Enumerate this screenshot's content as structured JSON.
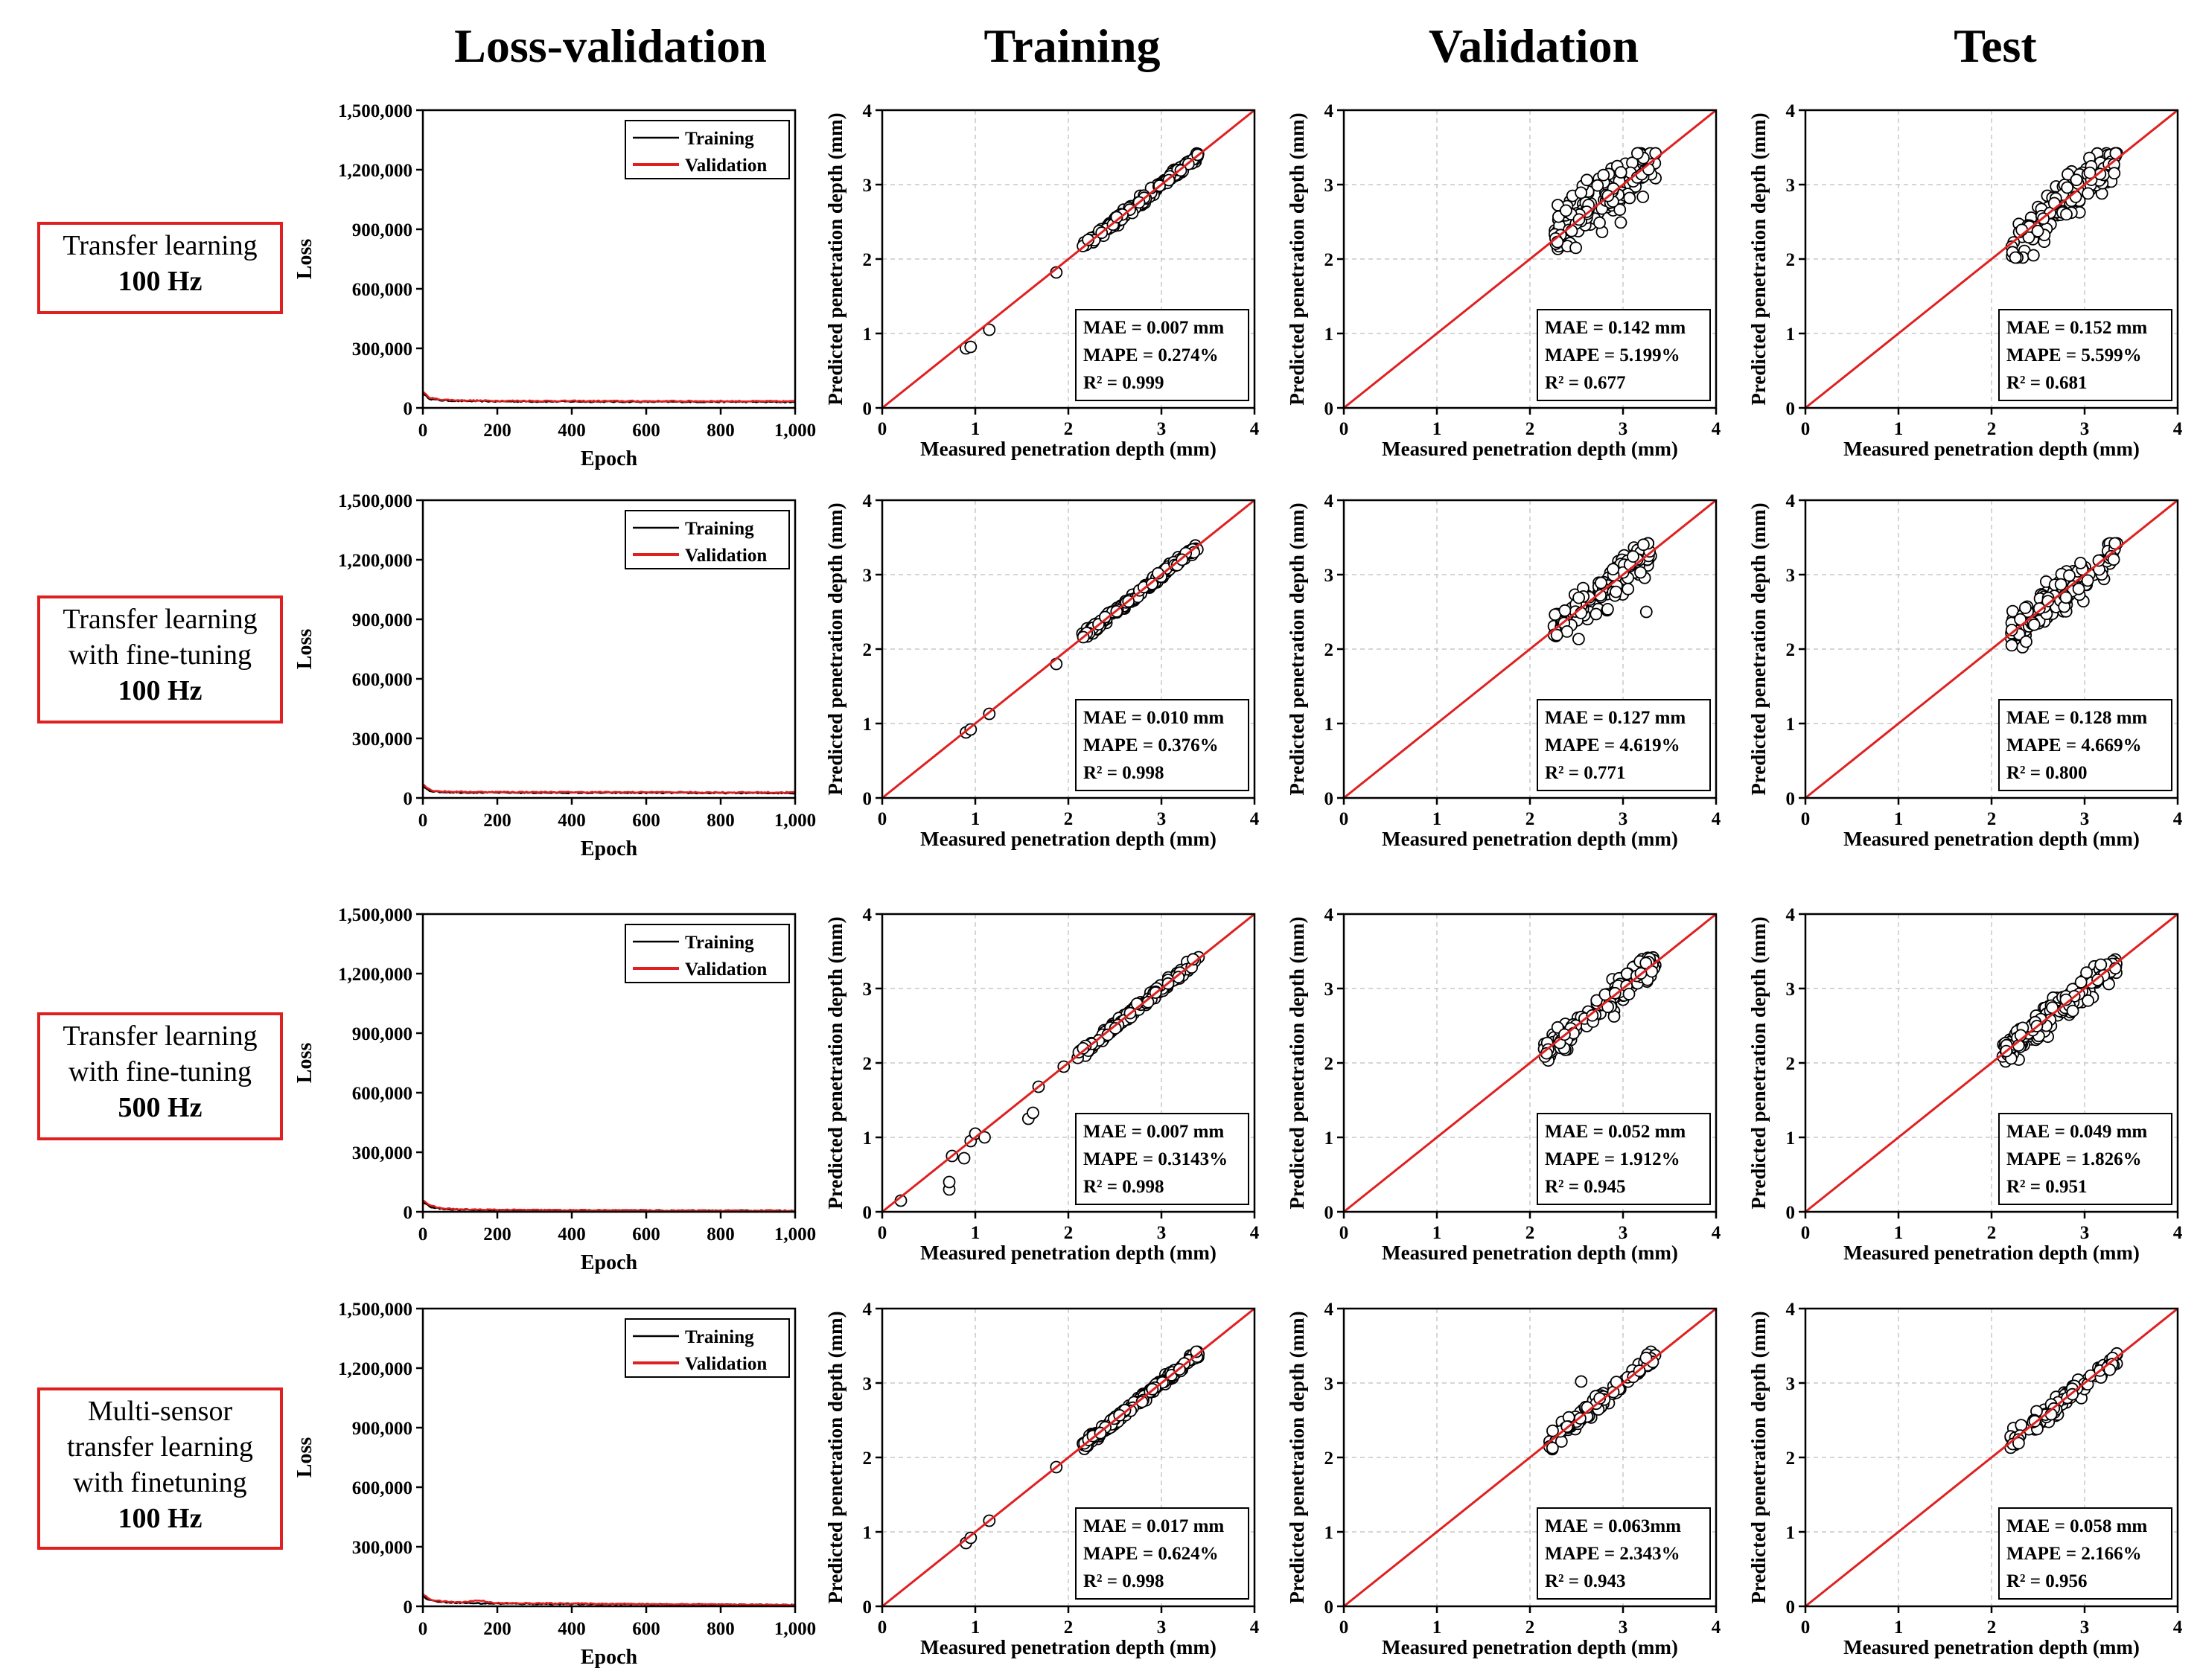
{
  "column_titles": [
    "Loss-validation",
    "Training",
    "Validation",
    "Test"
  ],
  "row_labels": [
    {
      "text": "Transfer learning",
      "freq": "100 Hz"
    },
    {
      "text": "Transfer learning with fine-tuning",
      "freq": "100 Hz"
    },
    {
      "text": "Transfer learning with fine-tuning",
      "freq": "500 Hz"
    },
    {
      "text": "Multi-sensor transfer learning with finetuning",
      "freq": "100 Hz"
    }
  ],
  "colors": {
    "training": "#000000",
    "validation": "#e02020",
    "fit_line": "#e02020",
    "box": "#e02020"
  },
  "chart_data": [
    {
      "type": "line",
      "title": "Loss-validation",
      "xlabel": "Epoch",
      "ylabel": "Loss",
      "xlim": [
        0,
        1000
      ],
      "ylim": [
        0,
        1500000
      ],
      "xticks": [
        "0",
        "200",
        "400",
        "600",
        "800",
        "1,000"
      ],
      "yticks": [
        "0",
        "300,000",
        "600,000",
        "900,000",
        "1,200,000",
        "1,500,000"
      ],
      "legend": [
        "Training",
        "Validation"
      ],
      "legend_position": "top-right",
      "rows": [
        {
          "label": "Transfer learning 100 Hz",
          "series": [
            {
              "name": "Training",
              "x": [
                0,
                20,
                50,
                100,
                200,
                400,
                600,
                800,
                1000
              ],
              "values": [
                70000,
                45000,
                38000,
                35000,
                33000,
                32000,
                31000,
                31000,
                30000
              ]
            },
            {
              "name": "Validation",
              "x": [
                0,
                20,
                50,
                100,
                200,
                400,
                600,
                800,
                1000
              ],
              "values": [
                80000,
                50000,
                42000,
                38000,
                36000,
                35000,
                34000,
                34000,
                33000
              ]
            }
          ]
        },
        {
          "label": "Transfer learning with fine-tuning 100 Hz",
          "series": [
            {
              "name": "Training",
              "x": [
                0,
                20,
                50,
                100,
                200,
                400,
                600,
                800,
                1000
              ],
              "values": [
                60000,
                35000,
                30000,
                28000,
                27000,
                26000,
                26000,
                25000,
                25000
              ]
            },
            {
              "name": "Validation",
              "x": [
                0,
                20,
                50,
                100,
                200,
                400,
                600,
                800,
                1000
              ],
              "values": [
                70000,
                40000,
                33000,
                31000,
                30000,
                29000,
                29000,
                28000,
                28000
              ]
            }
          ]
        },
        {
          "label": "Transfer learning with fine-tuning 500 Hz",
          "series": [
            {
              "name": "Training",
              "x": [
                0,
                20,
                50,
                100,
                200,
                400,
                600,
                800,
                1000
              ],
              "values": [
                50000,
                25000,
                15000,
                10000,
                8000,
                7000,
                6000,
                5000,
                5000
              ]
            },
            {
              "name": "Validation",
              "x": [
                0,
                20,
                50,
                100,
                200,
                400,
                600,
                800,
                1000
              ],
              "values": [
                60000,
                30000,
                18000,
                12000,
                10000,
                8000,
                7000,
                6000,
                6000
              ]
            }
          ]
        },
        {
          "label": "Multi-sensor transfer learning with finetuning 100 Hz",
          "series": [
            {
              "name": "Training",
              "x": [
                0,
                20,
                50,
                100,
                150,
                200,
                400,
                600,
                800,
                1000
              ],
              "values": [
                50000,
                30000,
                22000,
                18000,
                15000,
                14000,
                12000,
                10000,
                8000,
                6000
              ]
            },
            {
              "name": "Validation",
              "x": [
                0,
                20,
                50,
                100,
                150,
                200,
                400,
                600,
                800,
                1000
              ],
              "values": [
                60000,
                35000,
                25000,
                20000,
                30000,
                16000,
                14000,
                11000,
                9000,
                7000
              ]
            }
          ]
        }
      ]
    },
    {
      "type": "scatter",
      "xlabel": "Measured penetration depth (mm)",
      "ylabel": "Predicted penetration depth (mm)",
      "xlim": [
        0,
        4
      ],
      "ylim": [
        0,
        4
      ],
      "ticks": [
        "0",
        "1",
        "2",
        "3",
        "4"
      ],
      "fit_line": [
        [
          0,
          0
        ],
        [
          4,
          4
        ]
      ],
      "panels": [
        {
          "row": 0,
          "column": "Training",
          "spread": 0.03,
          "range": [
            2.15,
            3.4
          ],
          "n": 160,
          "outliers": [
            [
              0.9,
              0.8
            ],
            [
              0.95,
              0.82
            ],
            [
              1.15,
              1.05
            ],
            [
              1.87,
              1.82
            ]
          ],
          "metrics": [
            "MAE = 0.007 mm",
            "MAPE = 0.274%",
            "R² = 0.999"
          ]
        },
        {
          "row": 0,
          "column": "Validation",
          "spread": 0.17,
          "range": [
            2.25,
            3.35
          ],
          "n": 150,
          "outliers": [],
          "metrics": [
            "MAE = 0.142 mm",
            "MAPE = 5.199%",
            "R² = 0.677"
          ]
        },
        {
          "row": 0,
          "column": "Test",
          "spread": 0.17,
          "range": [
            2.2,
            3.35
          ],
          "n": 150,
          "outliers": [
            [
              2.45,
              2.05
            ]
          ],
          "metrics": [
            "MAE = 0.152 mm",
            "MAPE = 5.599%",
            "R² = 0.681"
          ]
        },
        {
          "row": 1,
          "column": "Training",
          "spread": 0.03,
          "range": [
            2.15,
            3.4
          ],
          "n": 160,
          "outliers": [
            [
              0.9,
              0.88
            ],
            [
              0.95,
              0.92
            ],
            [
              1.15,
              1.13
            ],
            [
              1.87,
              1.8
            ]
          ],
          "metrics": [
            "MAE = 0.010 mm",
            "MAPE = 0.376%",
            "R² = 0.998"
          ]
        },
        {
          "row": 1,
          "column": "Validation",
          "spread": 0.13,
          "range": [
            2.25,
            3.3
          ],
          "n": 150,
          "outliers": [
            [
              3.25,
              2.5
            ]
          ],
          "metrics": [
            "MAE = 0.127 mm",
            "MAPE = 4.619%",
            "R² = 0.771"
          ]
        },
        {
          "row": 1,
          "column": "Test",
          "spread": 0.13,
          "range": [
            2.2,
            3.35
          ],
          "n": 150,
          "outliers": [],
          "metrics": [
            "MAE = 0.128 mm",
            "MAPE = 4.669%",
            "R² = 0.800"
          ]
        },
        {
          "row": 2,
          "column": "Training",
          "spread": 0.03,
          "range": [
            2.1,
            3.4
          ],
          "n": 170,
          "outliers": [
            [
              0.2,
              0.15
            ],
            [
              0.72,
              0.3
            ],
            [
              0.72,
              0.4
            ],
            [
              0.75,
              0.75
            ],
            [
              0.88,
              0.72
            ],
            [
              0.95,
              0.95
            ],
            [
              1.0,
              1.05
            ],
            [
              1.1,
              1.0
            ],
            [
              1.57,
              1.25
            ],
            [
              1.62,
              1.33
            ],
            [
              1.68,
              1.68
            ],
            [
              1.95,
              1.95
            ]
          ],
          "metrics": [
            "MAE = 0.007 mm",
            "MAPE = 0.3143%",
            "R² = 0.998"
          ]
        },
        {
          "row": 2,
          "column": "Validation",
          "spread": 0.09,
          "range": [
            2.15,
            3.35
          ],
          "n": 190,
          "outliers": [],
          "metrics": [
            "MAE = 0.052 mm",
            "MAPE = 1.912%",
            "R² = 0.945"
          ]
        },
        {
          "row": 2,
          "column": "Test",
          "spread": 0.09,
          "range": [
            2.1,
            3.35
          ],
          "n": 190,
          "outliers": [],
          "metrics": [
            "MAE = 0.049 mm",
            "MAPE = 1.826%",
            "R² = 0.951"
          ]
        },
        {
          "row": 3,
          "column": "Training",
          "spread": 0.03,
          "range": [
            2.15,
            3.4
          ],
          "n": 160,
          "outliers": [
            [
              0.9,
              0.85
            ],
            [
              0.95,
              0.92
            ],
            [
              1.15,
              1.15
            ],
            [
              1.87,
              1.87
            ]
          ],
          "metrics": [
            "MAE = 0.017 mm",
            "MAPE = 0.624%",
            "R² = 0.998"
          ]
        },
        {
          "row": 3,
          "column": "Validation",
          "spread": 0.06,
          "range": [
            2.2,
            3.35
          ],
          "n": 120,
          "outliers": [
            [
              2.55,
              3.02
            ]
          ],
          "metrics": [
            "MAE = 0.063mm",
            "MAPE = 2.343%",
            "R² = 0.943"
          ]
        },
        {
          "row": 3,
          "column": "Test",
          "spread": 0.06,
          "range": [
            2.2,
            3.35
          ],
          "n": 120,
          "outliers": [],
          "metrics": [
            "MAE = 0.058 mm",
            "MAPE = 2.166%",
            "R² = 0.956"
          ]
        }
      ]
    }
  ]
}
